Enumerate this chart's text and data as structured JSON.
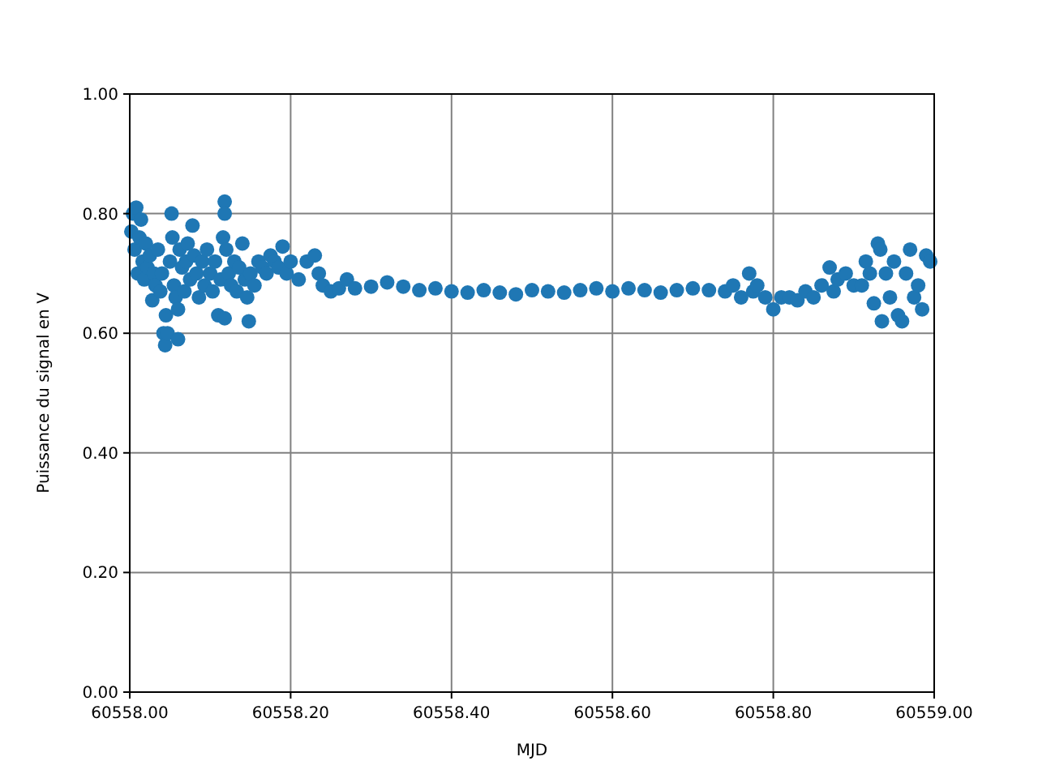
{
  "chart_data": {
    "type": "scatter",
    "xlabel": "MJD",
    "ylabel": "Puissance du signal en V",
    "xlim": [
      60558,
      60559
    ],
    "ylim": [
      0,
      1
    ],
    "xticks": [
      {
        "value": 60558,
        "label": "60558.00"
      },
      {
        "value": 60558.2,
        "label": "60558.20"
      },
      {
        "value": 60558.4,
        "label": "60558.40"
      },
      {
        "value": 60558.6,
        "label": "60558.60"
      },
      {
        "value": 60558.8,
        "label": "60558.80"
      },
      {
        "value": 60559,
        "label": "60559.00"
      }
    ],
    "yticks": [
      {
        "value": 0,
        "label": "0.00"
      },
      {
        "value": 0.2,
        "label": "0.20"
      },
      {
        "value": 0.4,
        "label": "0.40"
      },
      {
        "value": 0.6,
        "label": "0.60"
      },
      {
        "value": 0.8,
        "label": "0.80"
      },
      {
        "value": 1,
        "label": "1.00"
      }
    ],
    "grid": true,
    "marker": "circle",
    "series": [
      {
        "color": "#1f77b4",
        "x": [
          60558.002,
          60558.004,
          60558.006,
          60558.008,
          60558.01,
          60558.012,
          60558.014,
          60558.016,
          60558.018,
          60558.02,
          60558.022,
          60558.025,
          60558.028,
          60558.03,
          60558.032,
          60558.035,
          60558.038,
          60558.04,
          60558.042,
          60558.044,
          60558.045,
          60558.047,
          60558.05,
          60558.052,
          60558.053,
          60558.055,
          60558.057,
          60558.06,
          60558.06,
          60558.062,
          60558.065,
          60558.068,
          60558.07,
          60558.072,
          60558.075,
          60558.078,
          60558.08,
          60558.083,
          60558.086,
          60558.09,
          60558.093,
          60558.096,
          60558.1,
          60558.103,
          60558.106,
          60558.11,
          60558.113,
          60558.116,
          60558.118,
          60558.118,
          60558.118,
          60558.12,
          60558.123,
          60558.126,
          60558.13,
          60558.133,
          60558.136,
          60558.14,
          60558.143,
          60558.146,
          60558.148,
          60558.15,
          60558.155,
          60558.16,
          60558.165,
          60558.17,
          60558.175,
          60558.18,
          60558.185,
          60558.19,
          60558.195,
          60558.2,
          60558.21,
          60558.22,
          60558.23,
          60558.235,
          60558.24,
          60558.25,
          60558.26,
          60558.27,
          60558.28,
          60558.3,
          60558.32,
          60558.34,
          60558.36,
          60558.38,
          60558.4,
          60558.42,
          60558.44,
          60558.46,
          60558.48,
          60558.5,
          60558.52,
          60558.54,
          60558.56,
          60558.58,
          60558.6,
          60558.62,
          60558.64,
          60558.66,
          60558.68,
          60558.7,
          60558.72,
          60558.74,
          60558.75,
          60558.76,
          60558.77,
          60558.775,
          60558.78,
          60558.79,
          60558.8,
          60558.81,
          60558.82,
          60558.83,
          60558.84,
          60558.85,
          60558.86,
          60558.87,
          60558.875,
          60558.88,
          60558.89,
          60558.9,
          60558.91,
          60558.915,
          60558.92,
          60558.925,
          60558.93,
          60558.933,
          60558.935,
          60558.94,
          60558.945,
          60558.95,
          60558.955,
          60558.96,
          60558.965,
          60558.97,
          60558.975,
          60558.98,
          60558.985,
          60558.99,
          60558.995
        ],
        "values": [
          0.77,
          0.8,
          0.74,
          0.81,
          0.7,
          0.76,
          0.79,
          0.72,
          0.69,
          0.75,
          0.71,
          0.73,
          0.655,
          0.7,
          0.68,
          0.74,
          0.67,
          0.7,
          0.6,
          0.58,
          0.63,
          0.6,
          0.72,
          0.8,
          0.76,
          0.68,
          0.66,
          0.59,
          0.64,
          0.74,
          0.71,
          0.67,
          0.72,
          0.75,
          0.69,
          0.78,
          0.73,
          0.7,
          0.66,
          0.72,
          0.68,
          0.74,
          0.7,
          0.67,
          0.72,
          0.63,
          0.69,
          0.76,
          0.82,
          0.8,
          0.625,
          0.74,
          0.7,
          0.68,
          0.72,
          0.67,
          0.71,
          0.75,
          0.69,
          0.66,
          0.62,
          0.7,
          0.68,
          0.72,
          0.71,
          0.7,
          0.73,
          0.72,
          0.71,
          0.745,
          0.7,
          0.72,
          0.69,
          0.72,
          0.73,
          0.7,
          0.68,
          0.67,
          0.675,
          0.69,
          0.675,
          0.678,
          0.685,
          0.678,
          0.672,
          0.675,
          0.67,
          0.668,
          0.672,
          0.668,
          0.665,
          0.672,
          0.67,
          0.668,
          0.672,
          0.675,
          0.67,
          0.675,
          0.672,
          0.668,
          0.672,
          0.675,
          0.672,
          0.67,
          0.68,
          0.66,
          0.7,
          0.67,
          0.68,
          0.66,
          0.64,
          0.66,
          0.66,
          0.655,
          0.67,
          0.66,
          0.68,
          0.71,
          0.67,
          0.69,
          0.7,
          0.68,
          0.68,
          0.72,
          0.7,
          0.65,
          0.75,
          0.74,
          0.62,
          0.7,
          0.66,
          0.72,
          0.63,
          0.62,
          0.7,
          0.74,
          0.66,
          0.68,
          0.64,
          0.73,
          0.72
        ]
      }
    ]
  }
}
